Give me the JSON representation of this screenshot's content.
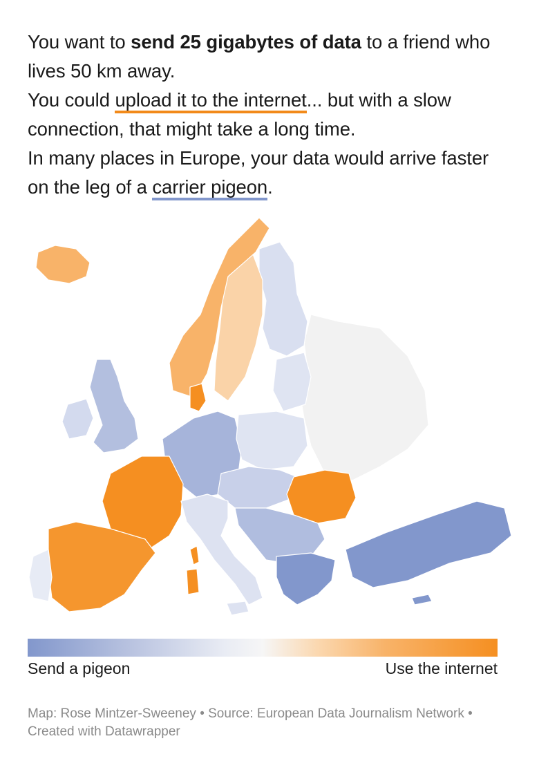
{
  "intro": {
    "line1_pre": "You want to ",
    "line1_bold": "send 25 gigabytes of data",
    "line1_post": " to a friend who lives 50 km away.",
    "line2_pre": "You could ",
    "line2_link": "upload it to the internet",
    "line2_post": "... but with a slow connection, that might take a long time.",
    "line3_pre": "In many places in Europe, your data would arrive faster on the leg of a ",
    "line3_link": "carrier pigeon",
    "line3_post": "."
  },
  "legend": {
    "left_label": "Send a pigeon",
    "right_label": "Use the internet",
    "color_low": "#8297cc",
    "color_mid": "#f6f6f6",
    "color_high": "#f58f21"
  },
  "credits": {
    "text": "Map: Rose Mintzer-Sweeney • Source: European Data Journalism Network • Created with Datawrapper"
  },
  "map": {
    "regions": [
      {
        "id": "iceland",
        "fill": "#f8b369"
      },
      {
        "id": "norway",
        "fill": "#f8b369"
      },
      {
        "id": "sweden",
        "fill": "#fad3a8"
      },
      {
        "id": "finland",
        "fill": "#d9dff0"
      },
      {
        "id": "baltics",
        "fill": "#dfe4f2"
      },
      {
        "id": "russia-belarus",
        "fill": "#f2f2f2"
      },
      {
        "id": "uk",
        "fill": "#b3bfdf"
      },
      {
        "id": "ireland",
        "fill": "#d3daee"
      },
      {
        "id": "france",
        "fill": "#f58f21"
      },
      {
        "id": "iberia",
        "fill": "#f5962e"
      },
      {
        "id": "portugal",
        "fill": "#e7ebf5"
      },
      {
        "id": "benelux-germany",
        "fill": "#a6b4da"
      },
      {
        "id": "poland",
        "fill": "#dfe4f2"
      },
      {
        "id": "central",
        "fill": "#c8d0e9"
      },
      {
        "id": "italy",
        "fill": "#dde2f1"
      },
      {
        "id": "balkans",
        "fill": "#b0bddf"
      },
      {
        "id": "romania",
        "fill": "#f58f21"
      },
      {
        "id": "greece",
        "fill": "#8297cc"
      },
      {
        "id": "turkey",
        "fill": "#8297cc"
      },
      {
        "id": "denmark",
        "fill": "#f58f21"
      },
      {
        "id": "corsica-sardinia",
        "fill": "#f58f21"
      }
    ]
  }
}
